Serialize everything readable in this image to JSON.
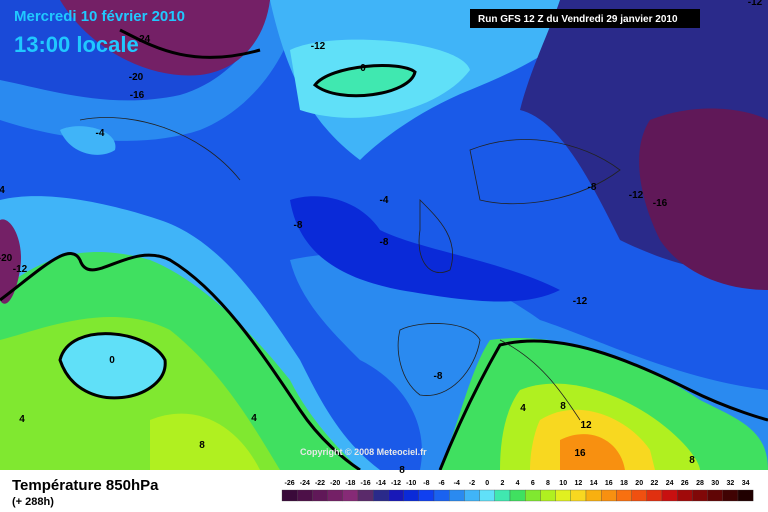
{
  "header": {
    "date": "Mercredi 10 février 2010",
    "time": "13:00 locale",
    "run": "Run GFS 12 Z du Vendredi 29 janvier 2010"
  },
  "map": {
    "contour_labels": [
      -24,
      -12,
      0,
      -20,
      -16,
      -4,
      -8,
      -12,
      -16,
      -4,
      -8,
      -8,
      -12,
      -20,
      -12,
      0,
      -8,
      4,
      4,
      4,
      8,
      12,
      16,
      8,
      8,
      8,
      -12,
      4
    ],
    "copyright": "Copyright © 2008 Meteociel.fr"
  },
  "footer": {
    "title": "Température 850hPa",
    "lead": "(+ 288h)"
  },
  "legend": {
    "items": [
      {
        "value": -26,
        "color": "#3a0a3a"
      },
      {
        "value": -24,
        "color": "#4d1048"
      },
      {
        "value": -22,
        "color": "#601858"
      },
      {
        "value": -20,
        "color": "#742066"
      },
      {
        "value": -18,
        "color": "#862a76"
      },
      {
        "value": -16,
        "color": "#5a2a6a"
      },
      {
        "value": -14,
        "color": "#2a2a8a"
      },
      {
        "value": -12,
        "color": "#1818b8"
      },
      {
        "value": -10,
        "color": "#0a2ad8"
      },
      {
        "value": -8,
        "color": "#1040f0"
      },
      {
        "value": -6,
        "color": "#1a62f0"
      },
      {
        "value": -4,
        "color": "#2a8af0"
      },
      {
        "value": -2,
        "color": "#40b4f8"
      },
      {
        "value": 0,
        "color": "#60e0f8"
      },
      {
        "value": 2,
        "color": "#40e8b0"
      },
      {
        "value": 4,
        "color": "#40e060"
      },
      {
        "value": 6,
        "color": "#80e830"
      },
      {
        "value": 8,
        "color": "#b0f020"
      },
      {
        "value": 10,
        "color": "#e0f020"
      },
      {
        "value": 12,
        "color": "#f8d820"
      },
      {
        "value": 14,
        "color": "#f8b010"
      },
      {
        "value": 16,
        "color": "#f89010"
      },
      {
        "value": 18,
        "color": "#f87010"
      },
      {
        "value": 20,
        "color": "#f05010"
      },
      {
        "value": 22,
        "color": "#e03010"
      },
      {
        "value": 24,
        "color": "#c81010"
      },
      {
        "value": 26,
        "color": "#a00a0a"
      },
      {
        "value": 28,
        "color": "#800808"
      },
      {
        "value": 30,
        "color": "#600505"
      },
      {
        "value": 32,
        "color": "#400303"
      },
      {
        "value": 34,
        "color": "#200000"
      }
    ]
  }
}
